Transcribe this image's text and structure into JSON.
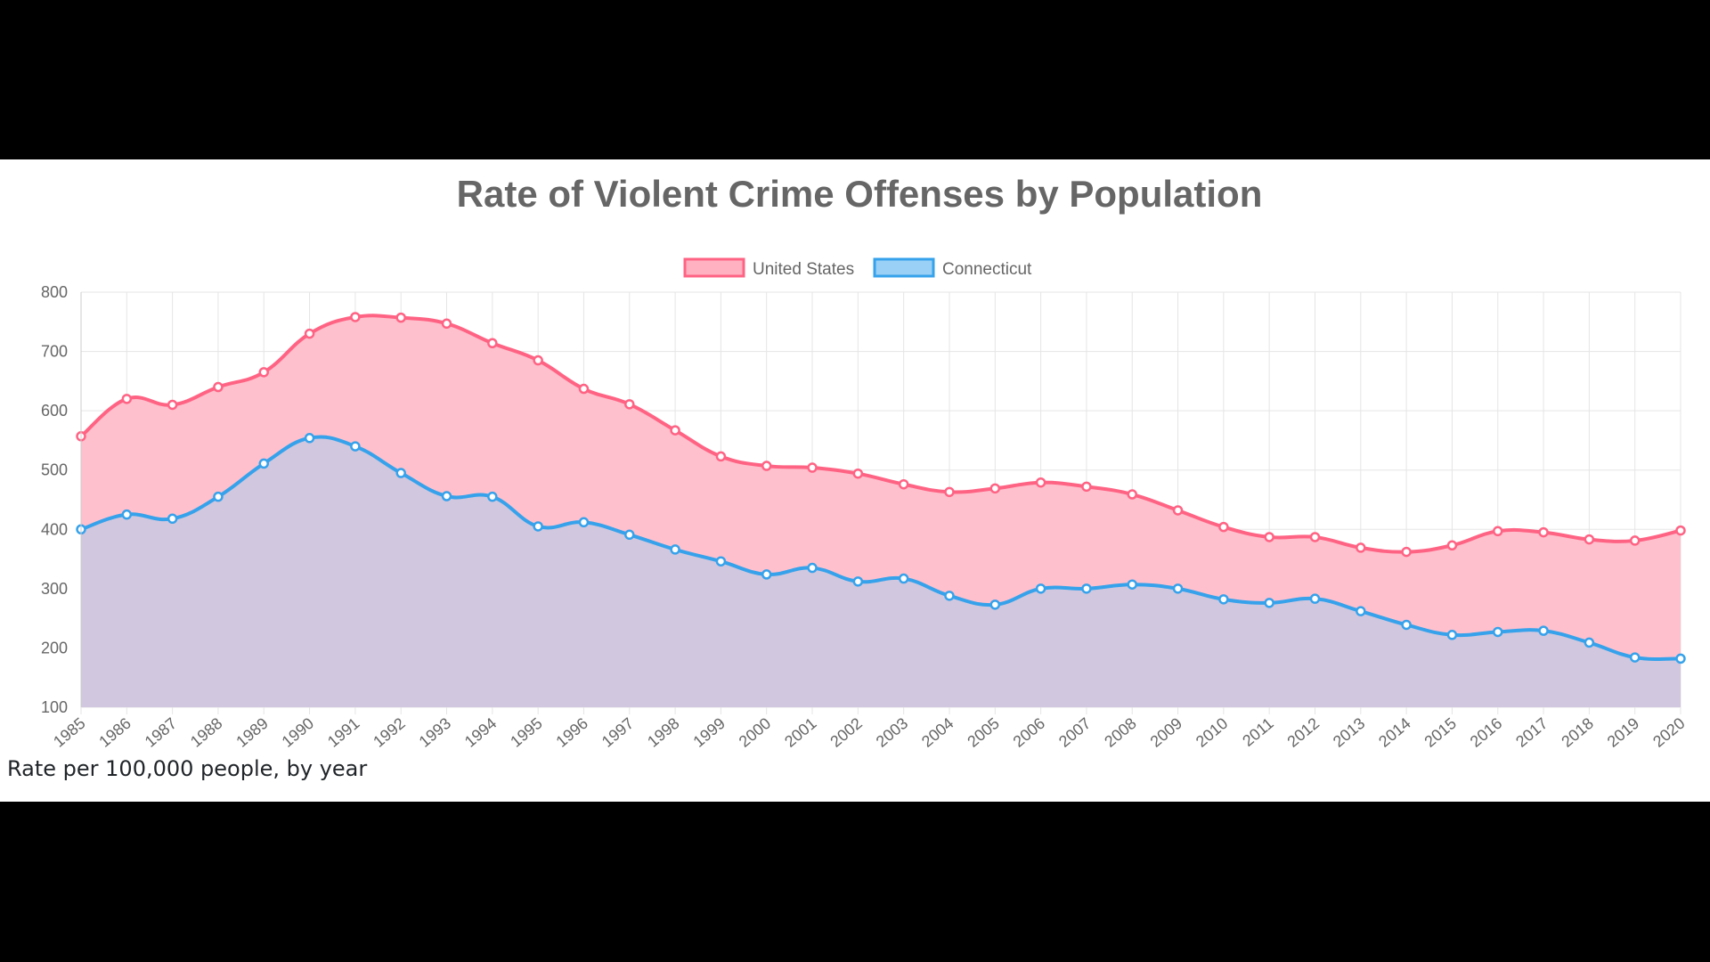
{
  "colors": {
    "united_states_line": "#ff6384",
    "united_states_fill": "#ffb1c1",
    "connecticut_line": "#36a2eb",
    "connecticut_fill": "#9ad0f5",
    "grid": "#e5e5e5",
    "text": "#666666",
    "background": "#ffffff",
    "letterbox": "#000000"
  },
  "caption": "Rate per 100,000 people, by year",
  "chart_data": {
    "type": "area",
    "title": "Rate of Violent Crime Offenses by Population",
    "xlabel": "",
    "ylabel": "",
    "ylim": [
      100,
      800
    ],
    "yticks": [
      100,
      200,
      300,
      400,
      500,
      600,
      700,
      800
    ],
    "grid": true,
    "legend_position": "top",
    "x": [
      "1985",
      "1986",
      "1987",
      "1988",
      "1989",
      "1990",
      "1991",
      "1992",
      "1993",
      "1994",
      "1995",
      "1996",
      "1997",
      "1998",
      "1999",
      "2000",
      "2001",
      "2002",
      "2003",
      "2004",
      "2005",
      "2006",
      "2007",
      "2008",
      "2009",
      "2010",
      "2011",
      "2012",
      "2013",
      "2014",
      "2015",
      "2016",
      "2017",
      "2018",
      "2019",
      "2020"
    ],
    "series": [
      {
        "name": "United States",
        "values": [
          557,
          620,
          610,
          640,
          665,
          730,
          758,
          757,
          747,
          714,
          685,
          637,
          611,
          567,
          523,
          507,
          504,
          494,
          476,
          463,
          469,
          479,
          472,
          459,
          432,
          404,
          387,
          387,
          369,
          362,
          373,
          397,
          395,
          383,
          381,
          398
        ]
      },
      {
        "name": "Connecticut",
        "values": [
          400,
          425,
          418,
          455,
          511,
          554,
          540,
          495,
          456,
          455,
          405,
          412,
          391,
          366,
          346,
          324,
          335,
          312,
          317,
          288,
          273,
          300,
          300,
          307,
          300,
          282,
          276,
          283,
          262,
          239,
          222,
          227,
          229,
          209,
          184,
          182
        ]
      }
    ]
  }
}
